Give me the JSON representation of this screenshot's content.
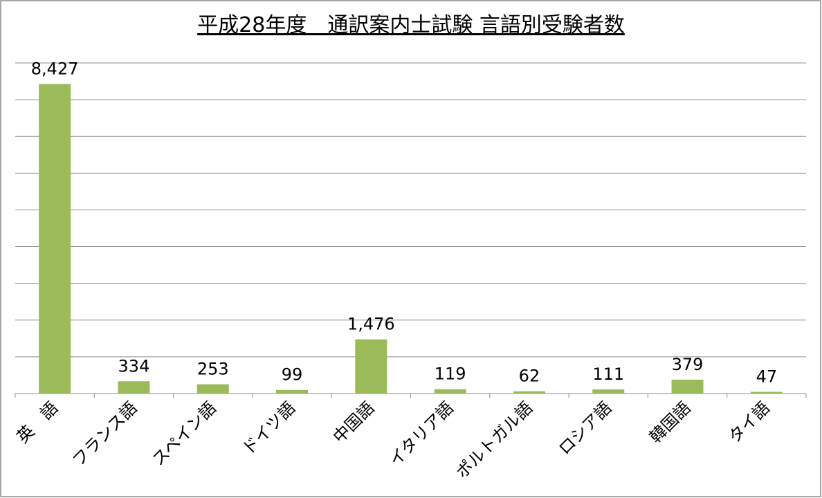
{
  "chart_data": {
    "type": "bar",
    "title": "平成28年度　通訳案内士試験 言語別受験者数",
    "categories": [
      "英　語",
      "フランス語",
      "スペイン語",
      "ドイツ語",
      "中国語",
      "イタリア語",
      "ポルトガル語",
      "ロシア語",
      "韓国語",
      "タイ語"
    ],
    "values": [
      8427,
      334,
      253,
      99,
      1476,
      119,
      62,
      111,
      379,
      47
    ],
    "value_labels": [
      "8,427",
      "334",
      "253",
      "99",
      "1,476",
      "119",
      "62",
      "111",
      "379",
      "47"
    ],
    "color": "#9bbb59",
    "ylim": [
      0,
      9000
    ],
    "yticks": [
      0,
      1000,
      2000,
      3000,
      4000,
      5000,
      6000,
      7000,
      8000,
      9000
    ],
    "grid": true
  }
}
